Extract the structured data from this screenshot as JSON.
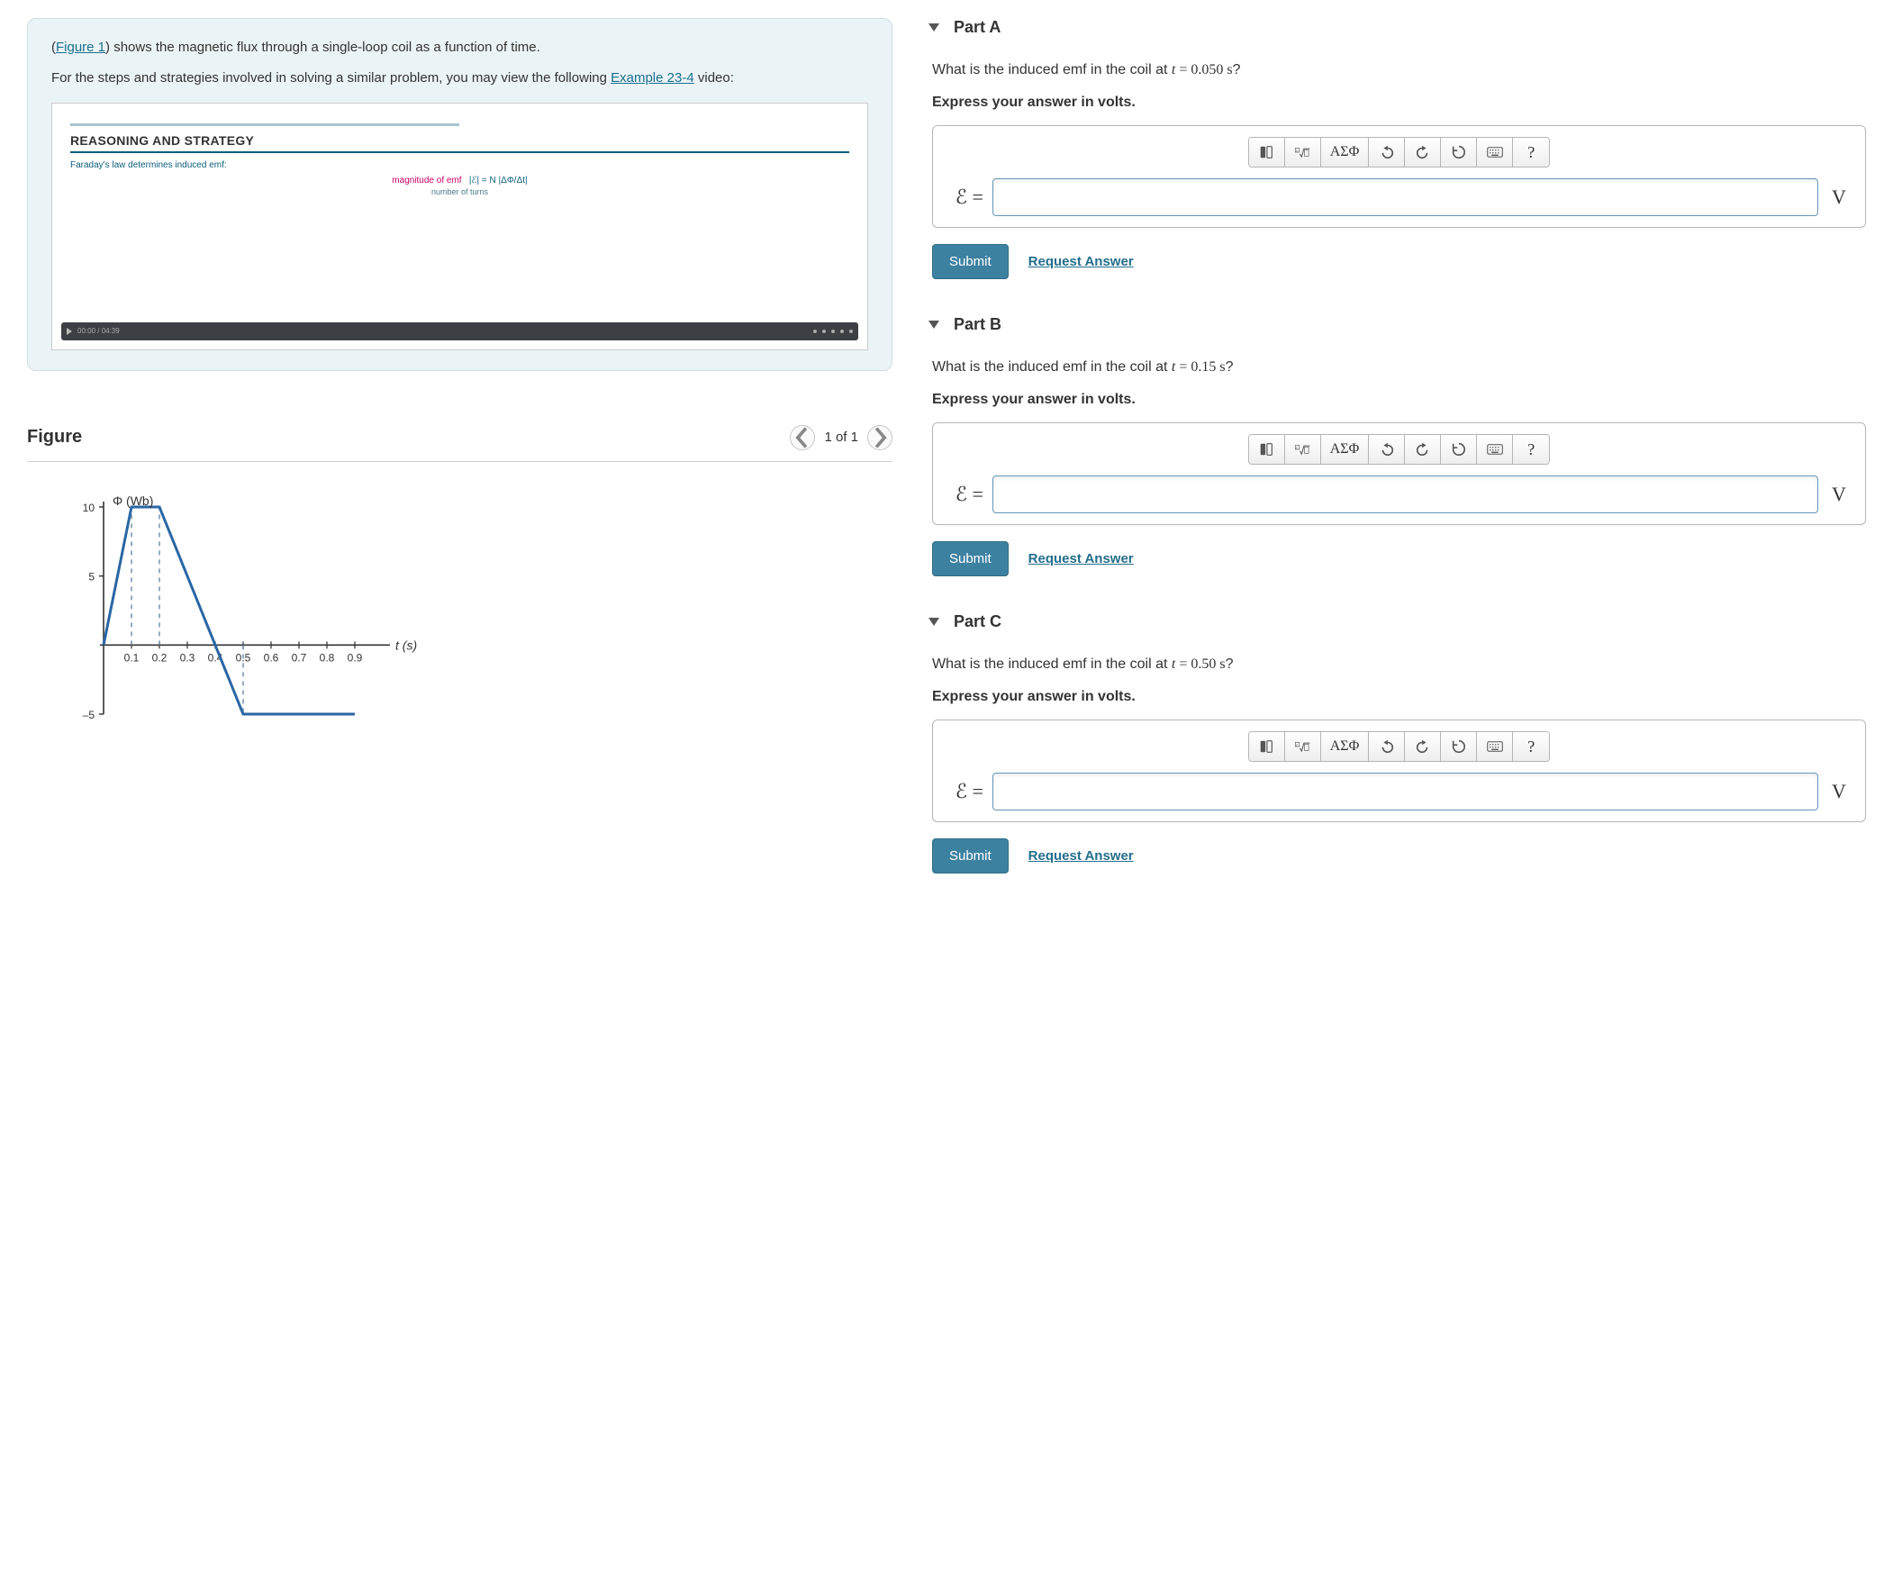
{
  "info": {
    "figure_link": "Figure 1",
    "text_after_link": ") shows the magnetic flux through a single-loop coil as a function of time.",
    "para2_pre": "For the steps and strategies involved in solving a similar problem, you may view the following ",
    "example_link": "Example 23-4",
    "para2_post": " video:"
  },
  "video": {
    "title": "REASONING AND STRATEGY",
    "sub": "Faraday's law determines induced emf:",
    "eq_left": "magnitude of emf",
    "eq_mid": "|ℰ| = N |ΔΦ/Δt|",
    "eq_bottom": "number of turns",
    "time": "00:00 / 04:39"
  },
  "figure": {
    "title": "Figure",
    "count_label": "1 of 1",
    "chart": {
      "type": "line",
      "y_label": "Φ (Wb)",
      "x_label": "t (s)",
      "x_min": 0,
      "x_max": 1.0,
      "y_min": -5,
      "y_max": 10,
      "x_ticks": [
        0.1,
        0.2,
        0.3,
        0.4,
        0.5,
        0.6,
        0.7,
        0.8,
        0.9
      ],
      "y_ticks": [
        -5,
        5,
        10
      ],
      "points": [
        {
          "x": 0.0,
          "y": 0
        },
        {
          "x": 0.1,
          "y": 10
        },
        {
          "x": 0.2,
          "y": 10
        },
        {
          "x": 0.5,
          "y": -5
        },
        {
          "x": 0.9,
          "y": -5
        }
      ],
      "dashed_x": [
        0.1,
        0.2,
        0.5
      ],
      "line_color": "#2a66a4",
      "line_width": 3,
      "axis_color": "#333333",
      "dash_color": "#6a8aa8",
      "background": "#ffffff",
      "label_fontsize": 14,
      "tick_fontsize": 12
    }
  },
  "parts": {
    "a": {
      "title": "Part A",
      "question_pre": "What is the induced emf in the coil at ",
      "question_var": "t",
      "question_eq": " = 0.050 s",
      "question_post": "?",
      "instr": "Express your answer in volts.",
      "emf_label": "ℰ =",
      "unit": "V",
      "submit": "Submit",
      "request": "Request Answer",
      "greek": "ΑΣΦ"
    },
    "b": {
      "title": "Part B",
      "question_pre": "What is the induced emf in the coil at ",
      "question_var": "t",
      "question_eq": " = 0.15 s",
      "question_post": "?",
      "instr": "Express your answer in volts.",
      "emf_label": "ℰ =",
      "unit": "V",
      "submit": "Submit",
      "request": "Request Answer",
      "greek": "ΑΣΦ"
    },
    "c": {
      "title": "Part C",
      "question_pre": "What is the induced emf in the coil at ",
      "question_var": "t",
      "question_eq": " = 0.50 s",
      "question_post": "?",
      "instr": "Express your answer in volts.",
      "emf_label": "ℰ =",
      "unit": "V",
      "submit": "Submit",
      "request": "Request Answer",
      "greek": "ΑΣΦ"
    }
  }
}
